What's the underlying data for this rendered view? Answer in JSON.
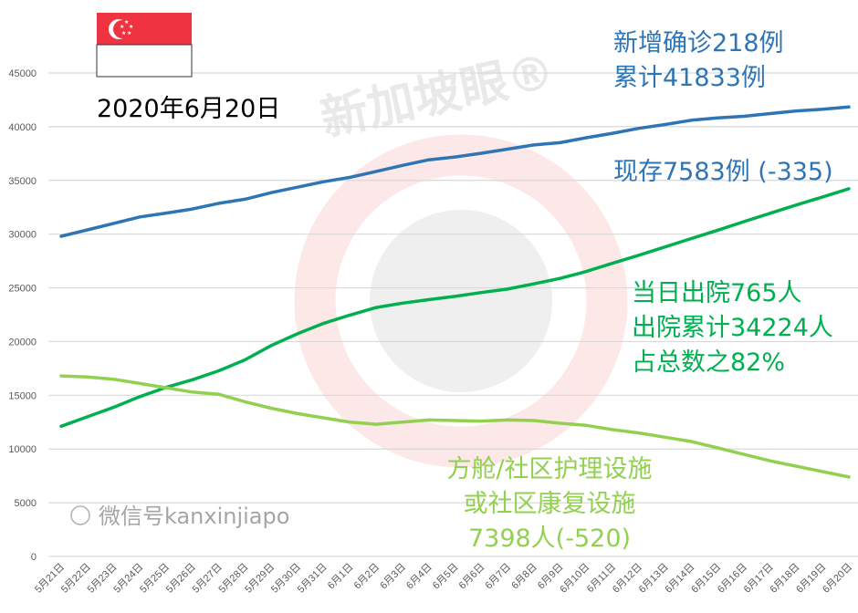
{
  "chart_data": {
    "type": "line",
    "title": "2020年6月20日",
    "xlabel": "",
    "ylabel": "",
    "ylim": [
      0,
      45000
    ],
    "yticks": [
      0,
      5000,
      10000,
      15000,
      20000,
      25000,
      30000,
      35000,
      40000,
      45000
    ],
    "grid": true,
    "categories": [
      "5月21日",
      "5月22日",
      "5月23日",
      "5月24日",
      "5月25日",
      "5月26日",
      "5月27日",
      "5月28日",
      "5月29日",
      "5月30日",
      "5月31日",
      "6月1日",
      "6月2日",
      "6月3日",
      "6月4日",
      "6月5日",
      "6月6日",
      "6月7日",
      "6月8日",
      "6月9日",
      "6月10日",
      "6月11日",
      "6月12日",
      "6月13日",
      "6月14日",
      "6月15日",
      "6月16日",
      "6月17日",
      "6月18日",
      "6月19日",
      "6月20日"
    ],
    "series": [
      {
        "color": "#2e75b6",
        "values": [
          29800,
          30400,
          31000,
          31600,
          31960,
          32340,
          32870,
          33250,
          33860,
          34370,
          34880,
          35290,
          35840,
          36400,
          36920,
          37180,
          37530,
          37910,
          38300,
          38510,
          38970,
          39390,
          39850,
          40200,
          40600,
          40820,
          40970,
          41220,
          41470,
          41620,
          41833
        ]
      },
      {
        "color": "#00b050",
        "values": [
          12117,
          12995,
          13882,
          14876,
          15738,
          16444,
          17276,
          18294,
          19631,
          20727,
          21699,
          22466,
          23175,
          23582,
          23904,
          24209,
          24559,
          24886,
          25368,
          25877,
          26523,
          27286,
          28040,
          28808,
          29589,
          30366,
          31163,
          31938,
          32712,
          33459,
          34224
        ]
      },
      {
        "color": "#92d050",
        "values": [
          16800,
          16700,
          16500,
          16100,
          15700,
          15300,
          15100,
          14400,
          13800,
          13300,
          12900,
          12500,
          12300,
          12500,
          12700,
          12650,
          12600,
          12700,
          12650,
          12400,
          12200,
          11800,
          11500,
          11100,
          10700,
          10100,
          9500,
          8900,
          8400,
          7900,
          7398
        ]
      }
    ],
    "annotations": {
      "confirmed": [
        "新增确诊218例",
        "累计41833例"
      ],
      "active": "现存7583例 (-335)",
      "discharged": [
        "当日出院765人",
        "出院累计34224人",
        "占总数之82%"
      ],
      "facilities": [
        "方舱/社区护理设施",
        "或社区康复设施",
        "7398人(-520)"
      ]
    }
  },
  "flag": {
    "name": "singapore-flag",
    "red": "#ef3340"
  },
  "watermark": {
    "logo_text": "新加坡眼®",
    "wechat": "微信号kanxinjiapo"
  }
}
